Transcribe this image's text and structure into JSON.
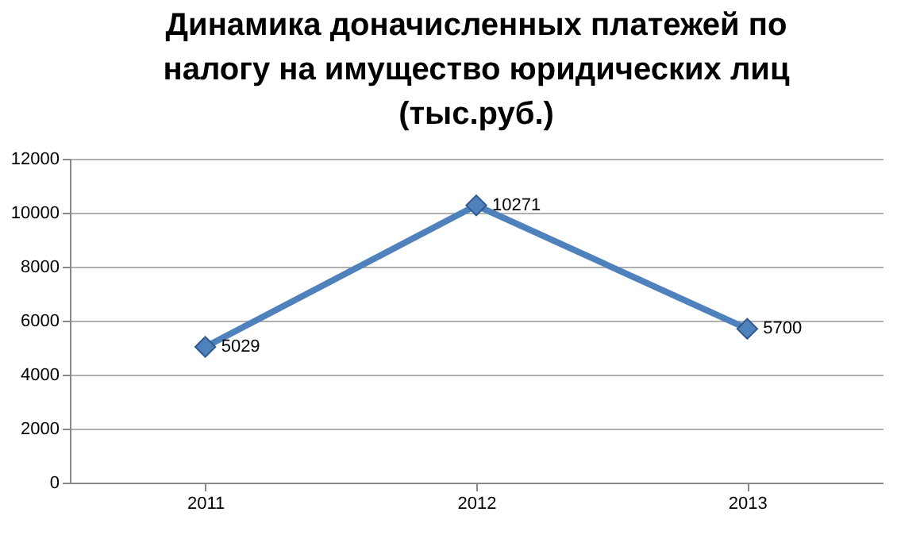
{
  "chart_data": {
    "type": "line",
    "title": "Динамика доначисленных платежей по налогу на имущество юридических лиц (тыс.руб.)",
    "categories": [
      "2011",
      "2012",
      "2013"
    ],
    "series": [
      {
        "color": "#4f81bd",
        "values": [
          5029,
          10271,
          5700
        ]
      }
    ],
    "ylim": [
      0,
      12000
    ],
    "yticks": [
      0,
      2000,
      4000,
      6000,
      8000,
      10000,
      12000
    ],
    "grid": "y",
    "marker": "diamond",
    "line_style": "solid",
    "data_labels": true
  }
}
